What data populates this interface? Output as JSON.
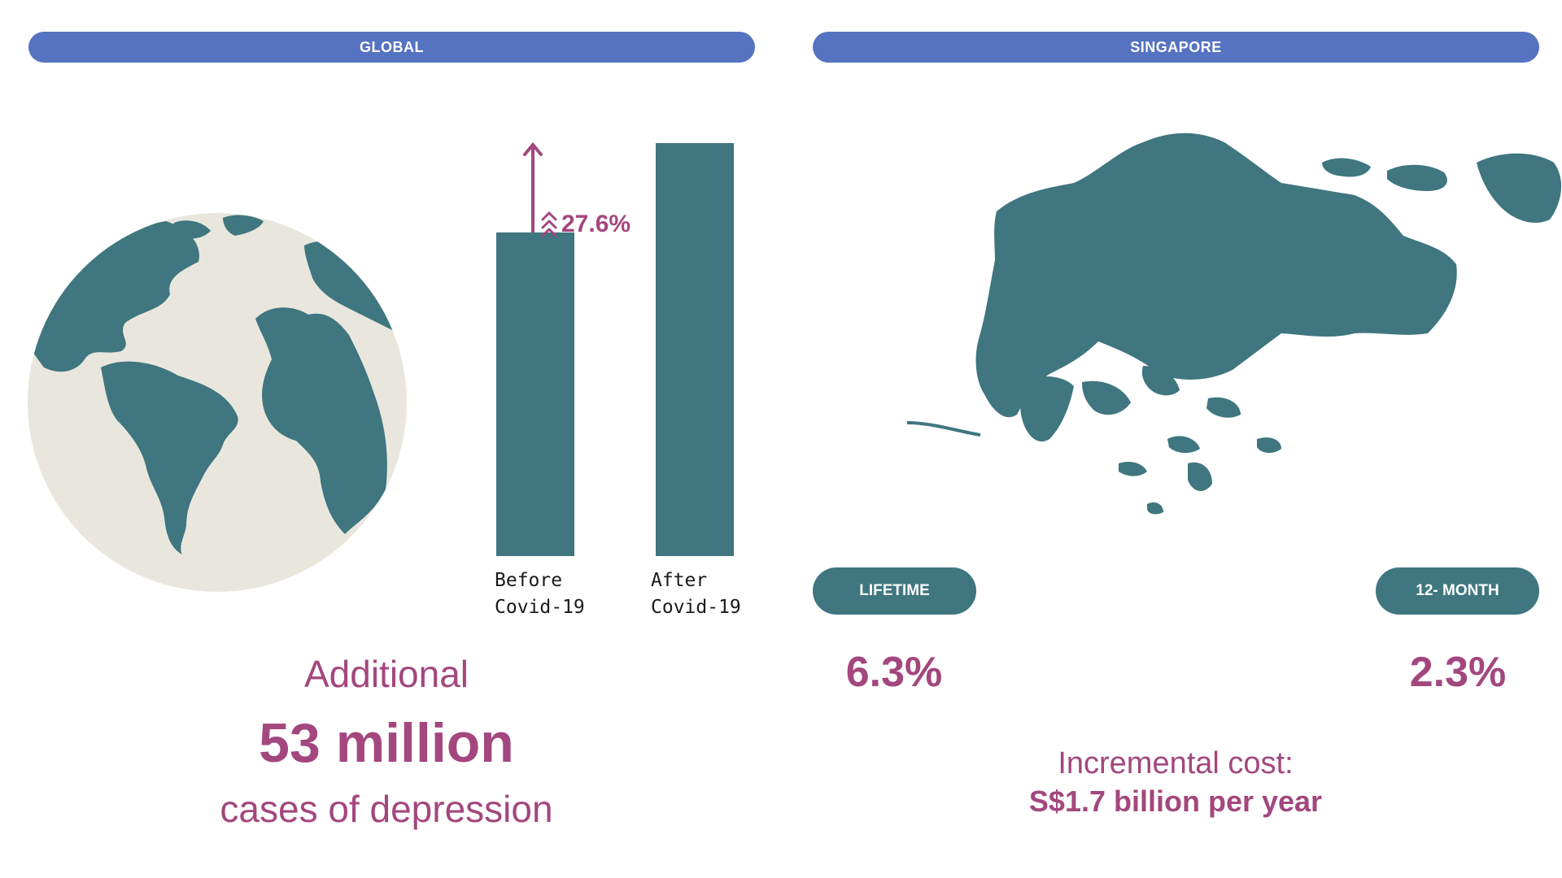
{
  "global": {
    "header": "GLOBAL",
    "globe_icon": "earth-globe",
    "chart_data": {
      "type": "bar",
      "categories": [
        "Before Covid-19",
        "After Covid-19"
      ],
      "category_labels": [
        "Before\nCovid-19",
        "After\nCovid-19"
      ],
      "values": [
        100,
        127.6
      ],
      "change_label": "27.6%",
      "change_icon": "double-chevron-up",
      "colors": {
        "bar": "#3f7680",
        "arrow": "#a3477e"
      }
    },
    "stat": {
      "prefix": "Additional",
      "value": "53 million",
      "suffix": "cases of depression"
    }
  },
  "singapore": {
    "header": "SINGAPORE",
    "map_icon": "singapore-map",
    "lifetime": {
      "label": "LIFETIME",
      "value": "6.3%"
    },
    "twelve_month": {
      "label": "12- MONTH",
      "value": "2.3%"
    },
    "cost": {
      "label": "Incremental cost:",
      "value": "S$1.7 billion per year"
    }
  },
  "colors": {
    "header_pill": "#5673c1",
    "teal": "#3f7680",
    "accent": "#a3477e",
    "globe_land": "#3f7680",
    "globe_water": "#e9e7dd"
  }
}
